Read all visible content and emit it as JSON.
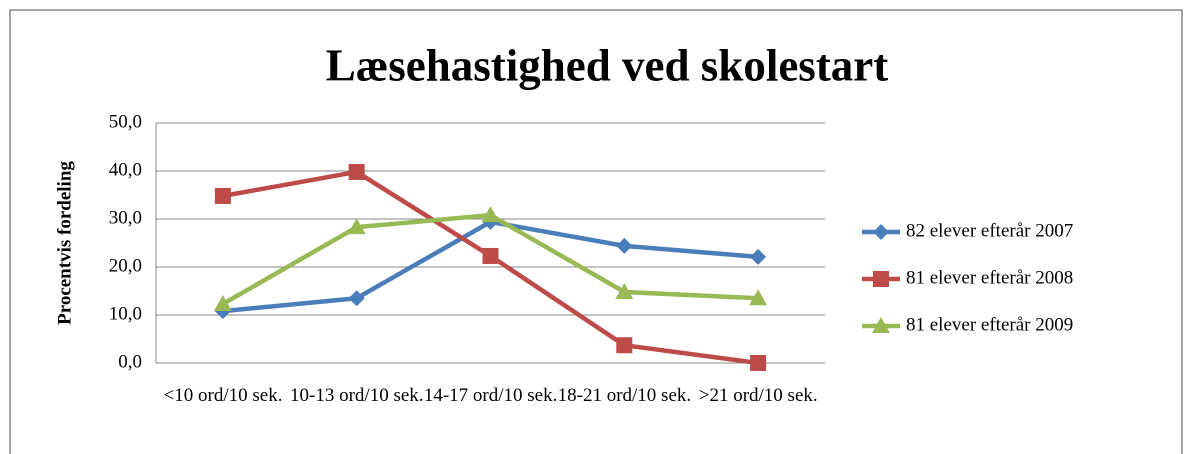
{
  "chart_data": {
    "type": "line",
    "title": "Læsehastighed  ved skolestart",
    "y_label": "Procentvis fordeling",
    "categories": [
      "<10 ord/10 sek.",
      "10-13 ord/10 sek.",
      "14-17 ord/10 sek.",
      "18-21 ord/10 sek.",
      ">21 ord/10 sek."
    ],
    "series": [
      {
        "name": "82 elever efterår 2007",
        "color": "#4a7ebb",
        "marker": "diamond",
        "values": [
          10.8,
          13.5,
          29.4,
          24.4,
          22.1
        ]
      },
      {
        "name": "81 elever efterår 2008",
        "color": "#be4b48",
        "marker": "square",
        "values": [
          34.8,
          39.8,
          22.3,
          3.7,
          0.0
        ]
      },
      {
        "name": "81 elever efterår 2009",
        "color": "#98b954",
        "marker": "triangle",
        "values": [
          12.3,
          28.3,
          30.8,
          14.8,
          13.5
        ]
      }
    ],
    "ylim": [
      0,
      50
    ],
    "yticks": [
      {
        "value": 0,
        "label": "0,0"
      },
      {
        "value": 10,
        "label": "10,0"
      },
      {
        "value": 20,
        "label": "20,0"
      },
      {
        "value": 30,
        "label": "30,0"
      },
      {
        "value": 40,
        "label": "40,0"
      },
      {
        "value": 50,
        "label": "50,0"
      }
    ],
    "grid": true,
    "legend": "right"
  }
}
